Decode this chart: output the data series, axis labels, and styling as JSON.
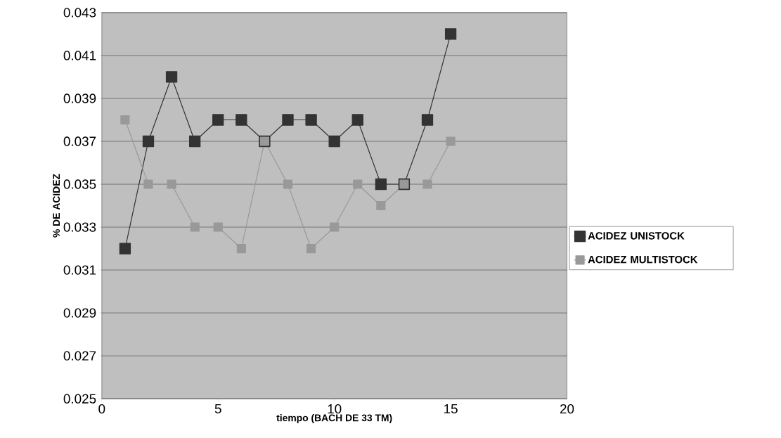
{
  "chart_data": {
    "type": "line",
    "xlabel": "tiempo (BACH DE 33 TM)",
    "ylabel": "% DE ACIDEZ",
    "x": [
      1,
      2,
      3,
      4,
      5,
      6,
      7,
      8,
      9,
      10,
      11,
      12,
      13,
      14,
      15
    ],
    "series": [
      {
        "name": "ACIDEZ UNISTOCK",
        "color": "#333333",
        "values": [
          0.032,
          0.037,
          0.04,
          0.037,
          0.038,
          0.038,
          0.037,
          0.038,
          0.038,
          0.037,
          0.038,
          0.035,
          0.035,
          0.038,
          0.042
        ]
      },
      {
        "name": "ACIDEZ MULTISTOCK",
        "color": "#999999",
        "values": [
          0.038,
          0.035,
          0.035,
          0.033,
          0.033,
          0.032,
          0.037,
          0.035,
          0.032,
          0.033,
          0.035,
          0.034,
          0.035,
          0.035,
          0.037
        ]
      }
    ],
    "xlim": [
      0,
      20
    ],
    "xticks": [
      0,
      5,
      10,
      15,
      20
    ],
    "ylim": [
      0.025,
      0.043
    ],
    "yticks": [
      0.025,
      0.027,
      0.029,
      0.031,
      0.033,
      0.035,
      0.037,
      0.039,
      0.041,
      0.043
    ],
    "grid": "y",
    "legend": "right",
    "marker": "square",
    "line_style": "solid"
  }
}
